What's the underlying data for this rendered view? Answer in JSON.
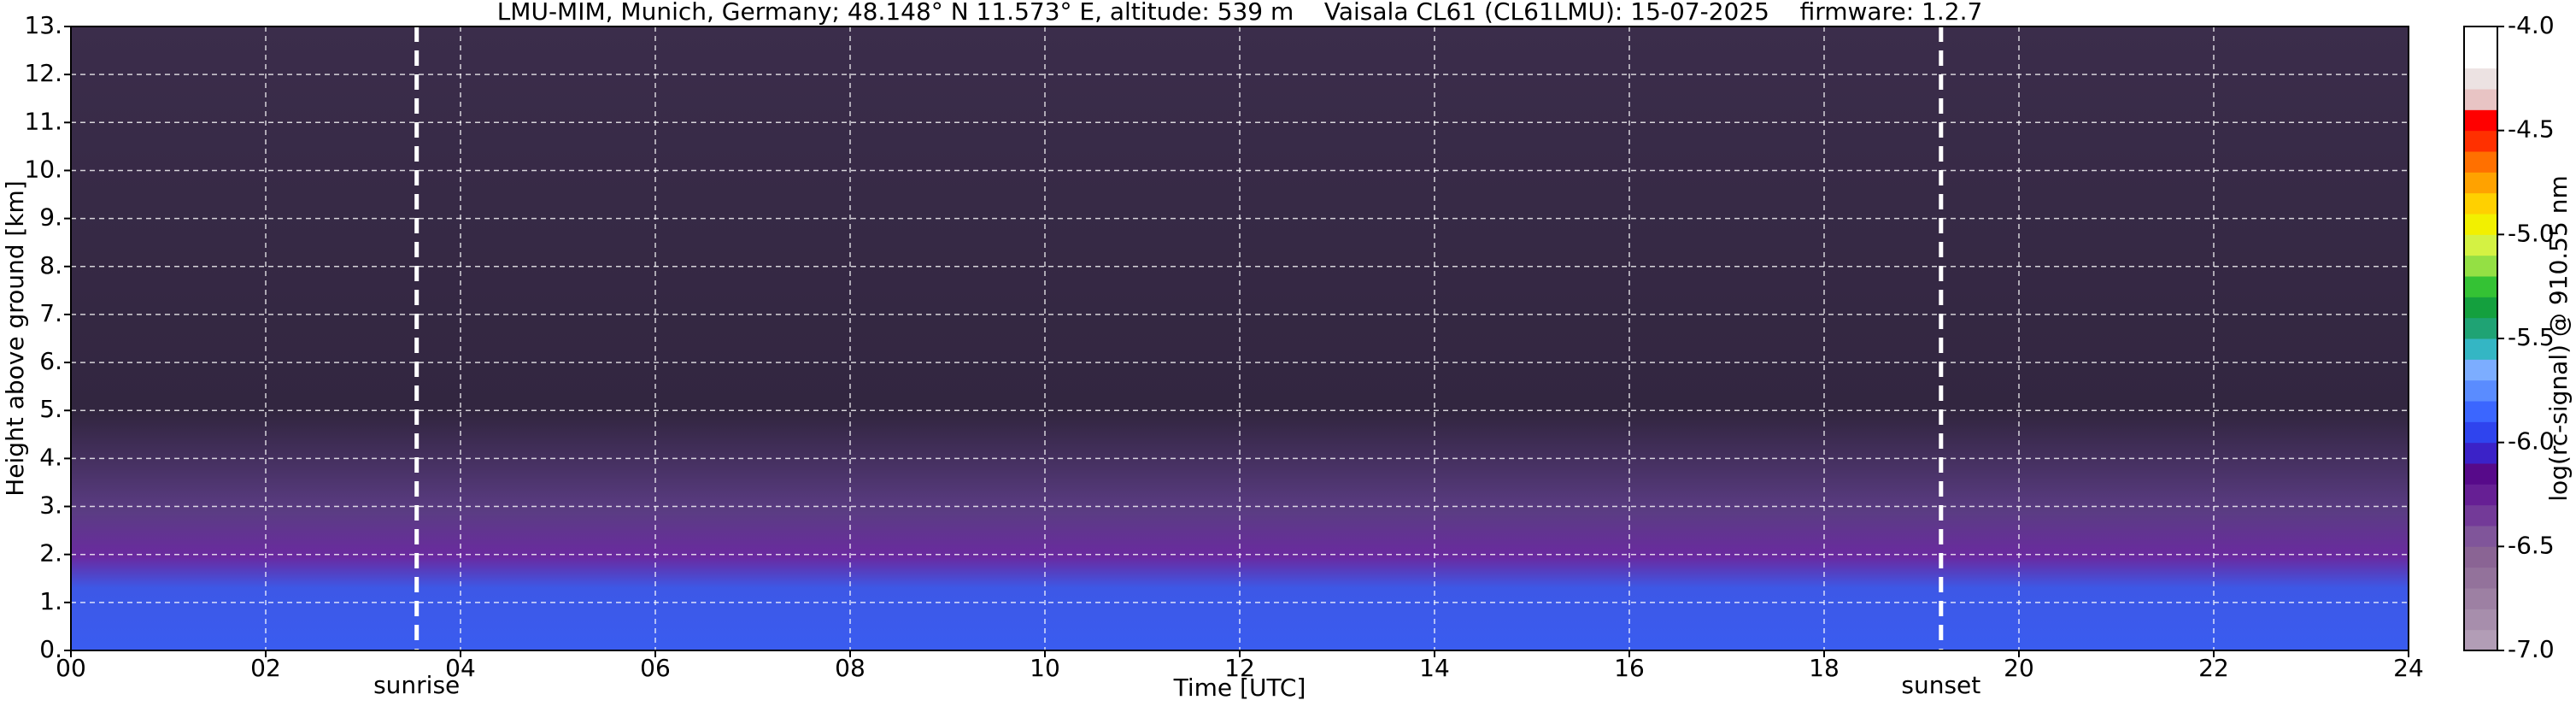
{
  "chart_data": {
    "type": "heatmap",
    "title": "LMU-MIM, Munich, Germany; 48.148° N 11.573° E, altitude: 539 m    Vaisala CL61 (CL61LMU): 15-07-2025    firmware: 1.2.7",
    "xlabel": "Time [UTC]",
    "ylabel": "Height above ground [km]",
    "colorbar_label": "log(rc-signal) @ 910.55 nm",
    "xlim": [
      0,
      24
    ],
    "ylim": [
      0,
      13
    ],
    "xticks": [
      {
        "value": 0,
        "label": "00"
      },
      {
        "value": 2,
        "label": "02"
      },
      {
        "value": 4,
        "label": "04"
      },
      {
        "value": 6,
        "label": "06"
      },
      {
        "value": 8,
        "label": "08"
      },
      {
        "value": 10,
        "label": "10"
      },
      {
        "value": 12,
        "label": "12"
      },
      {
        "value": 14,
        "label": "14"
      },
      {
        "value": 16,
        "label": "16"
      },
      {
        "value": 18,
        "label": "18"
      },
      {
        "value": 20,
        "label": "20"
      },
      {
        "value": 22,
        "label": "22"
      },
      {
        "value": 24,
        "label": "24"
      }
    ],
    "yticks": [
      {
        "value": 0,
        "label": "0."
      },
      {
        "value": 1,
        "label": "1."
      },
      {
        "value": 2,
        "label": "2."
      },
      {
        "value": 3,
        "label": "3."
      },
      {
        "value": 4,
        "label": "4."
      },
      {
        "value": 5,
        "label": "5."
      },
      {
        "value": 6,
        "label": "6."
      },
      {
        "value": 7,
        "label": "7."
      },
      {
        "value": 8,
        "label": "8."
      },
      {
        "value": 9,
        "label": "9."
      },
      {
        "value": 10,
        "label": "10."
      },
      {
        "value": 11,
        "label": "11."
      },
      {
        "value": 12,
        "label": "12."
      },
      {
        "value": 13,
        "label": "13."
      }
    ],
    "grid": true,
    "clim": [
      -7,
      -4
    ],
    "cticks": [
      {
        "value": -4,
        "label": "-4.0"
      },
      {
        "value": -4.5,
        "label": "-4.5"
      },
      {
        "value": -5,
        "label": "-5.0"
      },
      {
        "value": -5.5,
        "label": "-5.5"
      },
      {
        "value": -6,
        "label": "-6.0"
      },
      {
        "value": -6.5,
        "label": "-6.5"
      },
      {
        "value": -7,
        "label": "-7.0"
      }
    ],
    "colormap": [
      "#b29db6",
      "#a78eac",
      "#9d80a3",
      "#93729b",
      "#8a6494",
      "#80559a",
      "#733a98",
      "#661f94",
      "#570a8a",
      "#3b22c8",
      "#2f44ee",
      "#3b66ff",
      "#5a8cff",
      "#7cadff",
      "#34b6c4",
      "#1fa374",
      "#14a03e",
      "#34c234",
      "#94e044",
      "#d4f243",
      "#f2f000",
      "#ffd000",
      "#ffa200",
      "#ff7000",
      "#ff3000",
      "#ff0000",
      "#e8c4c4",
      "#ece2e2",
      "#ffffff",
      "#ffffff"
    ],
    "annotations": [
      {
        "text": "sunrise",
        "x": 3.55
      },
      {
        "text": "sunset",
        "x": 19.2
      }
    ]
  }
}
